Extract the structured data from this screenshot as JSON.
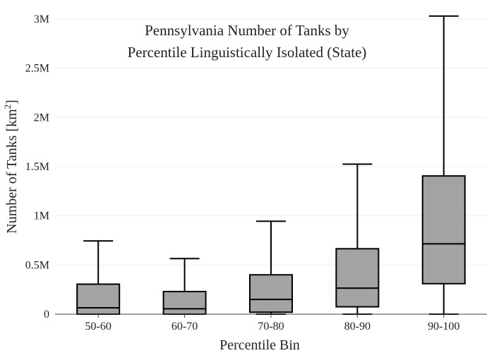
{
  "chart_data": {
    "type": "box",
    "title_lines": [
      "Pennsylvania Number of Tanks by",
      "Percentile Linguistically Isolated (State)"
    ],
    "xlabel": "Percentile Bin",
    "ylabel": {
      "text": "Number of Tanks  [km",
      "superscript": "2",
      "close": "]"
    },
    "ylim": [
      0,
      3050000
    ],
    "yticks": [
      {
        "value": 0,
        "label": "0"
      },
      {
        "value": 500000,
        "label": "0.5M"
      },
      {
        "value": 1000000,
        "label": "1M"
      },
      {
        "value": 1500000,
        "label": "1.5M"
      },
      {
        "value": 2000000,
        "label": "2M"
      },
      {
        "value": 2500000,
        "label": "2.5M"
      },
      {
        "value": 3000000,
        "label": "3M"
      }
    ],
    "grid": true,
    "colors": {
      "box_fill": "#a3a3a3",
      "box_stroke": "#000000",
      "grid": "#eeeeee",
      "axis": "#444444"
    },
    "categories": [
      "50-60",
      "60-70",
      "70-80",
      "80-90",
      "90-100"
    ],
    "boxes": [
      {
        "category": "50-60",
        "min": 0,
        "q1": 0,
        "median": 65000,
        "q3": 305000,
        "max": 745000
      },
      {
        "category": "60-70",
        "min": 0,
        "q1": 0,
        "median": 55000,
        "q3": 230000,
        "max": 565000
      },
      {
        "category": "70-80",
        "min": 0,
        "q1": 20000,
        "median": 150000,
        "q3": 400000,
        "max": 945000
      },
      {
        "category": "80-90",
        "min": 0,
        "q1": 75000,
        "median": 265000,
        "q3": 665000,
        "max": 1525000
      },
      {
        "category": "90-100",
        "min": 0,
        "q1": 310000,
        "median": 715000,
        "q3": 1405000,
        "max": 3030000
      }
    ]
  }
}
